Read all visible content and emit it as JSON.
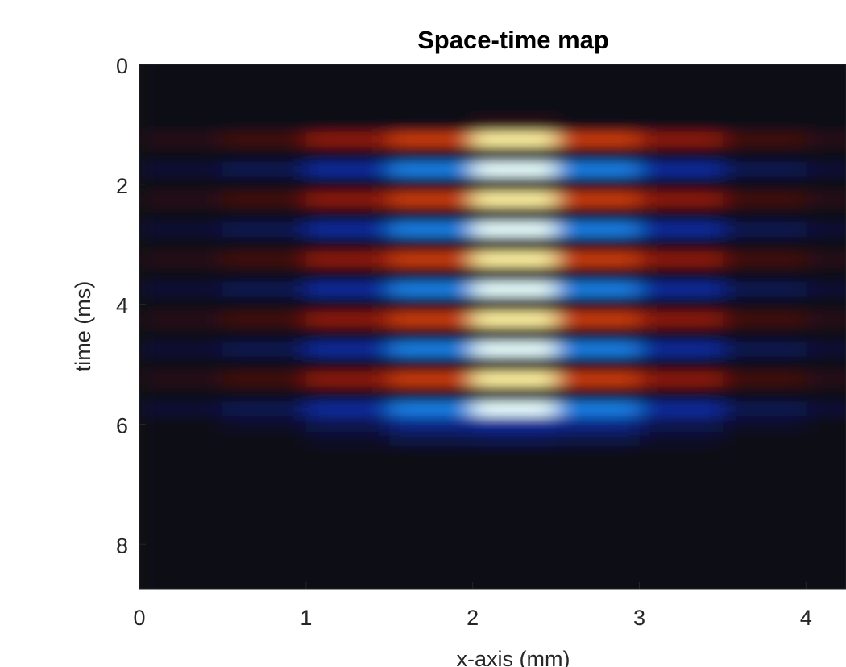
{
  "chart_data": {
    "type": "heatmap",
    "title": "Space-time map",
    "x_label": "x-axis (mm)",
    "y_label": "time (ms)",
    "xlim": [
      0,
      4.24
    ],
    "ylim": [
      0,
      8.75
    ],
    "y_reversed": true,
    "xticks": [
      0,
      1,
      2,
      3,
      4
    ],
    "yticks": [
      0,
      2,
      4,
      6,
      8
    ],
    "colorscale": [
      [
        -1,
        "#e8ffff"
      ],
      [
        -0.7,
        "#1fa0ff"
      ],
      [
        -0.35,
        "#0a2a9a"
      ],
      [
        0,
        "#0a0a18"
      ],
      [
        0.35,
        "#8a1408"
      ],
      [
        0.7,
        "#e04a10"
      ],
      [
        1,
        "#fff2a0"
      ]
    ],
    "x": [
      0.25,
      0.75,
      1.25,
      1.75,
      2.25,
      2.75,
      3.25,
      3.75,
      4.25
    ],
    "y": [
      0,
      0.25,
      0.5,
      0.75,
      1,
      1.25,
      1.5,
      1.75,
      2,
      2.25,
      2.5,
      2.75,
      3,
      3.25,
      3.5,
      3.75,
      4,
      4.25,
      4.5,
      4.75,
      5,
      5.25,
      5.5,
      5.75,
      6,
      6.25,
      6.5,
      6.75,
      7,
      7.25,
      7.5,
      7.75,
      8,
      8.25,
      8.5,
      8.75
    ],
    "z": [
      [
        0,
        0,
        0,
        0,
        0,
        0,
        0,
        0,
        0
      ],
      [
        0,
        0,
        0,
        0,
        0,
        0,
        0,
        0,
        0
      ],
      [
        0,
        0,
        0,
        0,
        0,
        0,
        0,
        0,
        0
      ],
      [
        0,
        0,
        0,
        0,
        0,
        0,
        0,
        0,
        0
      ],
      [
        0,
        0,
        0,
        0,
        0.1,
        0,
        0,
        0,
        0
      ],
      [
        0.08,
        0.15,
        0.35,
        0.6,
        1,
        0.6,
        0.35,
        0.15,
        0.08
      ],
      [
        0,
        0,
        0,
        0,
        0,
        0,
        0,
        0,
        0
      ],
      [
        -0.08,
        -0.15,
        -0.35,
        -0.6,
        -1,
        -0.6,
        -0.35,
        -0.15,
        -0.08
      ],
      [
        0,
        0,
        0,
        0,
        0,
        0,
        0,
        0,
        0
      ],
      [
        0.08,
        0.15,
        0.35,
        0.6,
        1,
        0.6,
        0.35,
        0.15,
        0.08
      ],
      [
        0,
        0,
        0,
        0,
        0,
        0,
        0,
        0,
        0
      ],
      [
        -0.08,
        -0.15,
        -0.35,
        -0.6,
        -1,
        -0.6,
        -0.35,
        -0.15,
        -0.08
      ],
      [
        0,
        0,
        0,
        0,
        0,
        0,
        0,
        0,
        0
      ],
      [
        0.08,
        0.15,
        0.35,
        0.6,
        1,
        0.6,
        0.35,
        0.15,
        0.08
      ],
      [
        0,
        0,
        0,
        0,
        0,
        0,
        0,
        0,
        0
      ],
      [
        -0.08,
        -0.15,
        -0.35,
        -0.6,
        -1,
        -0.6,
        -0.35,
        -0.15,
        -0.08
      ],
      [
        0,
        0,
        0,
        0,
        0,
        0,
        0,
        0,
        0
      ],
      [
        0.08,
        0.15,
        0.35,
        0.6,
        1,
        0.6,
        0.35,
        0.15,
        0.08
      ],
      [
        0,
        0,
        0,
        0,
        0,
        0,
        0,
        0,
        0
      ],
      [
        -0.08,
        -0.15,
        -0.35,
        -0.6,
        -1,
        -0.6,
        -0.35,
        -0.15,
        -0.08
      ],
      [
        0,
        0,
        0,
        0,
        0,
        0,
        0,
        0,
        0
      ],
      [
        0.08,
        0.15,
        0.35,
        0.6,
        1,
        0.6,
        0.35,
        0.15,
        0.08
      ],
      [
        0,
        0,
        0,
        0,
        0,
        0,
        0,
        0,
        0
      ],
      [
        -0.08,
        -0.15,
        -0.35,
        -0.6,
        -1,
        -0.6,
        -0.35,
        -0.15,
        -0.08
      ],
      [
        0,
        -0.05,
        -0.15,
        -0.3,
        -0.35,
        -0.3,
        -0.15,
        -0.05,
        0
      ],
      [
        0,
        0,
        -0.05,
        -0.12,
        -0.15,
        -0.12,
        -0.05,
        0,
        0
      ],
      [
        0,
        0,
        0,
        0,
        0,
        0,
        0,
        0,
        0
      ],
      [
        0,
        0,
        0,
        0,
        0,
        0,
        0,
        0,
        0
      ],
      [
        0,
        0,
        0,
        0,
        0,
        0,
        0,
        0,
        0
      ],
      [
        0,
        0,
        0,
        0,
        0,
        0,
        0,
        0,
        0
      ],
      [
        0,
        0,
        0,
        0,
        0,
        0,
        0,
        0,
        0
      ],
      [
        0,
        0,
        0,
        0,
        0,
        0,
        0,
        0,
        0
      ],
      [
        0,
        0,
        0,
        0,
        0,
        0,
        0,
        0,
        0
      ],
      [
        0,
        0,
        0,
        0,
        0,
        0,
        0,
        0,
        0
      ],
      [
        0,
        0,
        0,
        0,
        0,
        0,
        0,
        0,
        0
      ],
      [
        0,
        0,
        0,
        0,
        0,
        0,
        0,
        0,
        0
      ]
    ]
  }
}
